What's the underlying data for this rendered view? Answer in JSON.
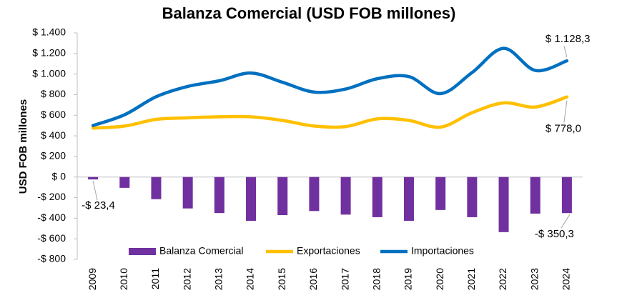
{
  "chart_data": {
    "type": "bar-line",
    "title": "Balanza Comercial (USD FOB millones)",
    "y_label": "USD FOB millones",
    "categories": [
      "2009",
      "2010",
      "2011",
      "2012",
      "2013",
      "2014",
      "2015",
      "2016",
      "2017",
      "2018",
      "2019",
      "2020",
      "2021",
      "2022",
      "2023",
      "2024"
    ],
    "series": [
      {
        "name": "Balanza Comercial",
        "type": "bar",
        "color": "#7030a0",
        "values": [
          -23.4,
          -105,
          -215,
          -305,
          -350,
          -425,
          -370,
          -330,
          -365,
          -390,
          -425,
          -320,
          -390,
          -535,
          -355,
          -350.3
        ],
        "value_labels": [
          "-$ 23,4",
          null,
          null,
          null,
          null,
          null,
          null,
          null,
          null,
          null,
          null,
          null,
          null,
          null,
          null,
          "-$ 350,3"
        ]
      },
      {
        "name": "Exportaciones",
        "type": "line",
        "color": "#ffc000",
        "values": [
          475,
          495,
          560,
          575,
          585,
          585,
          550,
          495,
          490,
          565,
          550,
          485,
          625,
          720,
          680,
          778.0
        ],
        "value_labels": [
          null,
          null,
          null,
          null,
          null,
          null,
          null,
          null,
          null,
          null,
          null,
          null,
          null,
          null,
          null,
          "$ 778,0"
        ]
      },
      {
        "name": "Importaciones",
        "type": "line",
        "color": "#0070c0",
        "values": [
          500,
          605,
          780,
          880,
          935,
          1010,
          920,
          825,
          855,
          955,
          975,
          810,
          1015,
          1250,
          1035,
          1128.3
        ],
        "value_labels": [
          null,
          null,
          null,
          null,
          null,
          null,
          null,
          null,
          null,
          null,
          null,
          null,
          null,
          null,
          null,
          "$ 1.128,3"
        ]
      }
    ],
    "ylim": [
      -800,
      1400
    ],
    "yticks": [
      {
        "value": -800,
        "label": "-$ 800"
      },
      {
        "value": -600,
        "label": "-$ 600"
      },
      {
        "value": -400,
        "label": "-$ 400"
      },
      {
        "value": -200,
        "label": "-$ 200"
      },
      {
        "value": 0,
        "label": "$ 0"
      },
      {
        "value": 200,
        "label": "$ 200"
      },
      {
        "value": 400,
        "label": "$ 400"
      },
      {
        "value": 600,
        "label": "$ 600"
      },
      {
        "value": 800,
        "label": "$ 800"
      },
      {
        "value": 1000,
        "label": "$ 1.000"
      },
      {
        "value": 1200,
        "label": "$ 1.200"
      },
      {
        "value": 1400,
        "label": "$ 1.400"
      }
    ],
    "legend": "bottom"
  }
}
